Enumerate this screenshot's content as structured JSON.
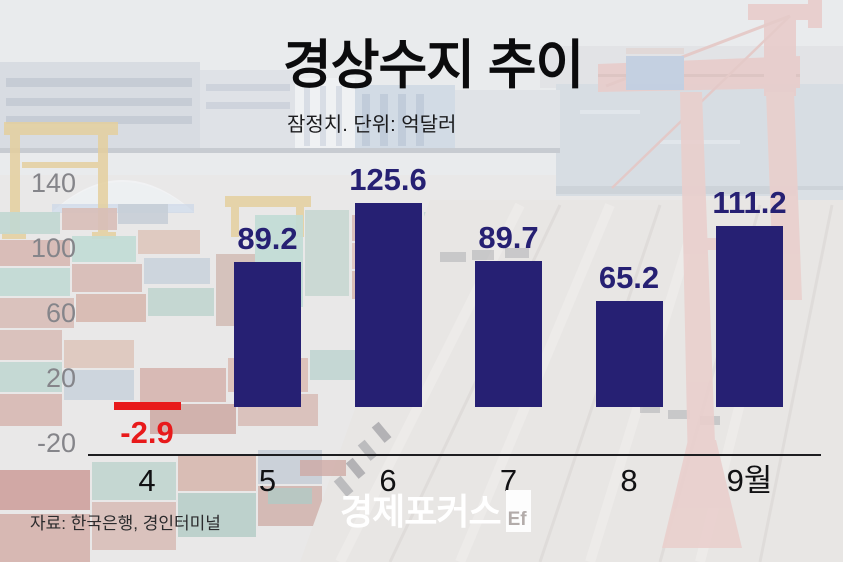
{
  "title": "경상수지 추이",
  "subtitle": "잠정치. 단위: 억달러",
  "source": "자료: 한국은행, 경인터미널",
  "logo": {
    "text": "경제포커스",
    "badge": "Ef"
  },
  "colors": {
    "bar": "#262073",
    "negative_bar": "#e81a1b",
    "value_label": "#262073",
    "negative_label": "#e81a1b",
    "y_tick": "#85858a",
    "x_tick": "#111113",
    "axis": "#1d1d20"
  },
  "chart_data": {
    "type": "bar",
    "title": "경상수지 추이",
    "subtitle": "잠정치. 단위: 억달러",
    "unit": "억달러",
    "categories": [
      "4",
      "5",
      "6",
      "7",
      "8",
      "9월"
    ],
    "values": [
      -2.9,
      89.2,
      125.6,
      89.7,
      65.2,
      111.2
    ],
    "value_labels": [
      "-2.9",
      "89.2",
      "125.6",
      "89.7",
      "65.2",
      "111.2"
    ],
    "y_ticks": [
      140,
      100,
      60,
      20,
      -20
    ],
    "y_tick_labels": [
      "140",
      "100",
      "60",
      "20",
      "-20"
    ],
    "ylim": [
      -20,
      150
    ],
    "grid": false,
    "legend": false,
    "background": "container-port-photo, washed out"
  }
}
